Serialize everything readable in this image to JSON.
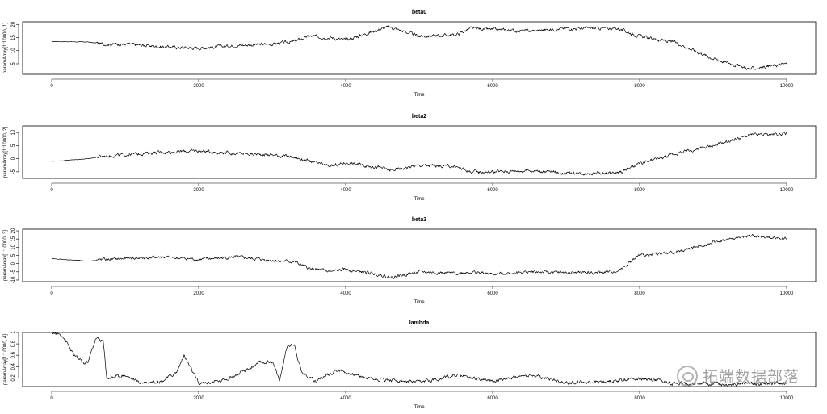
{
  "chart_data": [
    {
      "type": "line",
      "title": "beta0",
      "xlabel": "Time",
      "ylabel": "paramArray[1:10000, 1]",
      "xlim": [
        0,
        10000
      ],
      "ylim": [
        1,
        21
      ],
      "xticks": [
        0,
        2000,
        4000,
        6000,
        8000,
        10000
      ],
      "yticks": [
        5,
        10,
        15,
        20
      ],
      "x": [
        0,
        500,
        700,
        1000,
        1500,
        2000,
        2500,
        3000,
        3300,
        3500,
        3800,
        4000,
        4500,
        4600,
        5000,
        5500,
        5700,
        6000,
        6500,
        7000,
        7500,
        7700,
        8000,
        8500,
        9000,
        9500,
        10000
      ],
      "values": [
        13.5,
        13.3,
        12.5,
        12.5,
        11.5,
        11,
        12,
        12.5,
        13.5,
        15.5,
        15,
        14,
        18.5,
        19,
        15.5,
        16,
        18.5,
        18,
        17.5,
        18.5,
        18.5,
        18.5,
        15.5,
        13,
        7,
        3,
        5
      ],
      "noise": 1.2
    },
    {
      "type": "line",
      "title": "beta2",
      "xlabel": "Time",
      "ylabel": "paramArray[1:10000, 2]",
      "xlim": [
        0,
        10000
      ],
      "ylim": [
        -7.5,
        12.5
      ],
      "xticks": [
        0,
        2000,
        4000,
        6000,
        8000,
        10000
      ],
      "yticks": [
        -5,
        0,
        5,
        10
      ],
      "x": [
        0,
        500,
        700,
        1000,
        1500,
        2000,
        2500,
        3000,
        3300,
        3500,
        3800,
        4000,
        4500,
        4600,
        5000,
        5500,
        5700,
        6000,
        6500,
        7000,
        7500,
        7700,
        8000,
        8500,
        9000,
        9500,
        10000
      ],
      "values": [
        -1,
        0,
        1,
        1.5,
        2.5,
        3,
        2,
        1.5,
        0.5,
        -1,
        -3,
        -1.5,
        -3.5,
        -4.5,
        -2.5,
        -3,
        -5,
        -5,
        -4.5,
        -5.5,
        -5.5,
        -5.5,
        -2,
        2,
        5,
        9,
        9.5
      ],
      "noise": 1.2
    },
    {
      "type": "line",
      "title": "beta3",
      "xlabel": "Time",
      "ylabel": "paramArray[1:10000, 3]",
      "xlim": [
        0,
        10000
      ],
      "ylim": [
        -11,
        21
      ],
      "xticks": [
        0,
        2000,
        4000,
        6000,
        8000,
        10000
      ],
      "yticks": [
        -10,
        -5,
        0,
        5,
        10,
        15,
        20
      ],
      "x": [
        0,
        500,
        700,
        1000,
        1500,
        2000,
        2500,
        3000,
        3300,
        3500,
        3800,
        4000,
        4500,
        4600,
        5000,
        5500,
        5700,
        6000,
        6500,
        7000,
        7500,
        7700,
        8000,
        8500,
        9000,
        9500,
        10000
      ],
      "values": [
        3,
        1.5,
        2.5,
        3,
        4,
        2.5,
        4,
        2,
        1,
        -3,
        -5,
        -3.5,
        -7,
        -8.5,
        -5,
        -6,
        -5,
        -6.5,
        -5,
        -5.5,
        -5.5,
        -4.5,
        5,
        7,
        13,
        17,
        15
      ],
      "noise": 1.8
    },
    {
      "type": "line",
      "title": "lambda",
      "xlabel": "Time",
      "ylabel": "paramArray[1:10000, 4]",
      "xlim": [
        0,
        10000
      ],
      "ylim": [
        0.05,
        1.0
      ],
      "xticks": [
        0,
        2000,
        4000,
        6000,
        8000,
        10000
      ],
      "yticks": [
        0.2,
        0.4,
        0.6,
        0.8,
        1.0
      ],
      "x": [
        0,
        150,
        300,
        450,
        500,
        600,
        700,
        750,
        1000,
        1200,
        1500,
        1700,
        1800,
        1900,
        2000,
        2300,
        2600,
        2800,
        3000,
        3100,
        3200,
        3300,
        3400,
        3600,
        3900,
        4000,
        4300,
        5000,
        5500,
        6000,
        6500,
        7000,
        7500,
        8000,
        8300,
        8500
      ],
      "values": [
        1.0,
        0.95,
        0.6,
        0.45,
        0.5,
        0.9,
        0.85,
        0.2,
        0.25,
        0.12,
        0.15,
        0.3,
        0.6,
        0.35,
        0.1,
        0.15,
        0.3,
        0.45,
        0.5,
        0.15,
        0.75,
        0.8,
        0.3,
        0.15,
        0.35,
        0.3,
        0.2,
        0.12,
        0.25,
        0.15,
        0.25,
        0.12,
        0.13,
        0.2,
        0.15,
        0.1
      ],
      "noise": 0.06
    }
  ],
  "watermark": "拓端数据部落"
}
